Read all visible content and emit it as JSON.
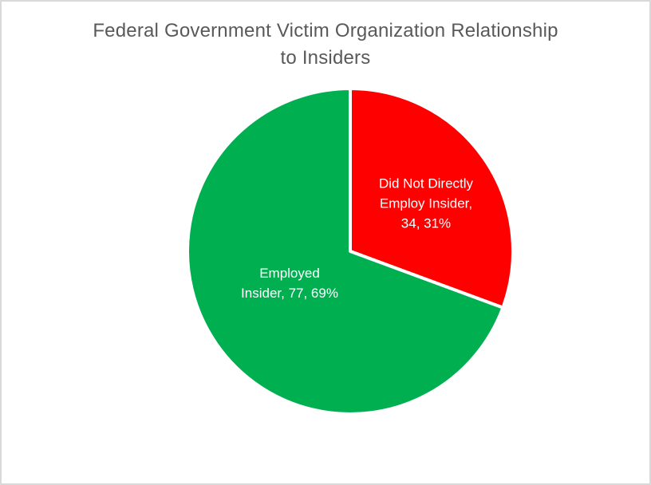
{
  "page": {
    "background_color": "#FFFFFF",
    "frame_border_color": "#D9D9D9"
  },
  "chart_data": {
    "type": "pie",
    "title": "Federal Government Victim Organization Relationship to Insiders",
    "title_lines": [
      "Federal Government Victim Organization Relationship",
      "to Insiders"
    ],
    "title_color": "#595959",
    "legend": "none",
    "start_angle_deg": 0,
    "direction": "clockwise",
    "separator_color": "#FFFFFF",
    "separator_width": 4,
    "categories": [
      "Did Not Directly Employ Insider",
      "Employed Insider"
    ],
    "values": [
      34,
      77
    ],
    "slices": [
      {
        "name": "Did Not Directly Employ Insider",
        "value": 34,
        "percent_label": "31%",
        "color": "#FF0000",
        "label_text": "Did Not Directly Employ Insider, 34, 31%",
        "label_lines": [
          "Did Not Directly",
          "Employ Insider,",
          "34, 31%"
        ],
        "label_text_color": "#FFFFFF"
      },
      {
        "name": "Employed Insider",
        "value": 77,
        "percent_label": "69%",
        "color": "#00B050",
        "label_text": "Employed Insider, 77, 69%",
        "label_lines": [
          "Employed",
          "Insider, 77, 69%"
        ],
        "label_text_color": "#FFFFFF"
      }
    ]
  }
}
